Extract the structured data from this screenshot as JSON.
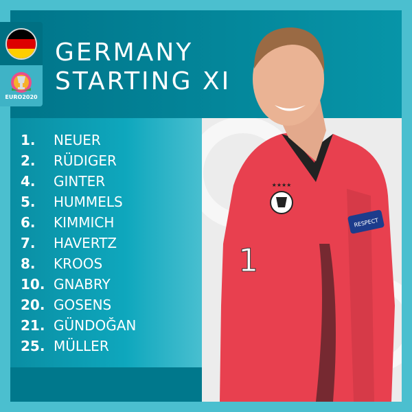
{
  "header": {
    "title_line1": "GERMANY",
    "title_line2": "STARTING XI"
  },
  "badges": {
    "flag_icon": "germany-flag-icon",
    "flag_colors": [
      "#000000",
      "#dd0000",
      "#ffce00"
    ],
    "tournament_logo": "EURO2020"
  },
  "lineup": [
    {
      "number": "1.",
      "name": "NEUER"
    },
    {
      "number": "2.",
      "name": "RÜDIGER"
    },
    {
      "number": "4.",
      "name": "GINTER"
    },
    {
      "number": "5.",
      "name": "HUMMELS"
    },
    {
      "number": "6.",
      "name": "KIMMICH"
    },
    {
      "number": "7.",
      "name": "HAVERTZ"
    },
    {
      "number": "8.",
      "name": "KROOS"
    },
    {
      "number": "10.",
      "name": "GNABRY"
    },
    {
      "number": "20.",
      "name": "GOSENS"
    },
    {
      "number": "21.",
      "name": "GÜNDOĞAN"
    },
    {
      "number": "25.",
      "name": "MÜLLER"
    }
  ],
  "photo": {
    "shirt_number": "1",
    "sleeve_badge": "RESPECT",
    "shirt_color": "#e8404f"
  },
  "colors": {
    "border": "#4bbfcf",
    "header": "#00778a"
  }
}
